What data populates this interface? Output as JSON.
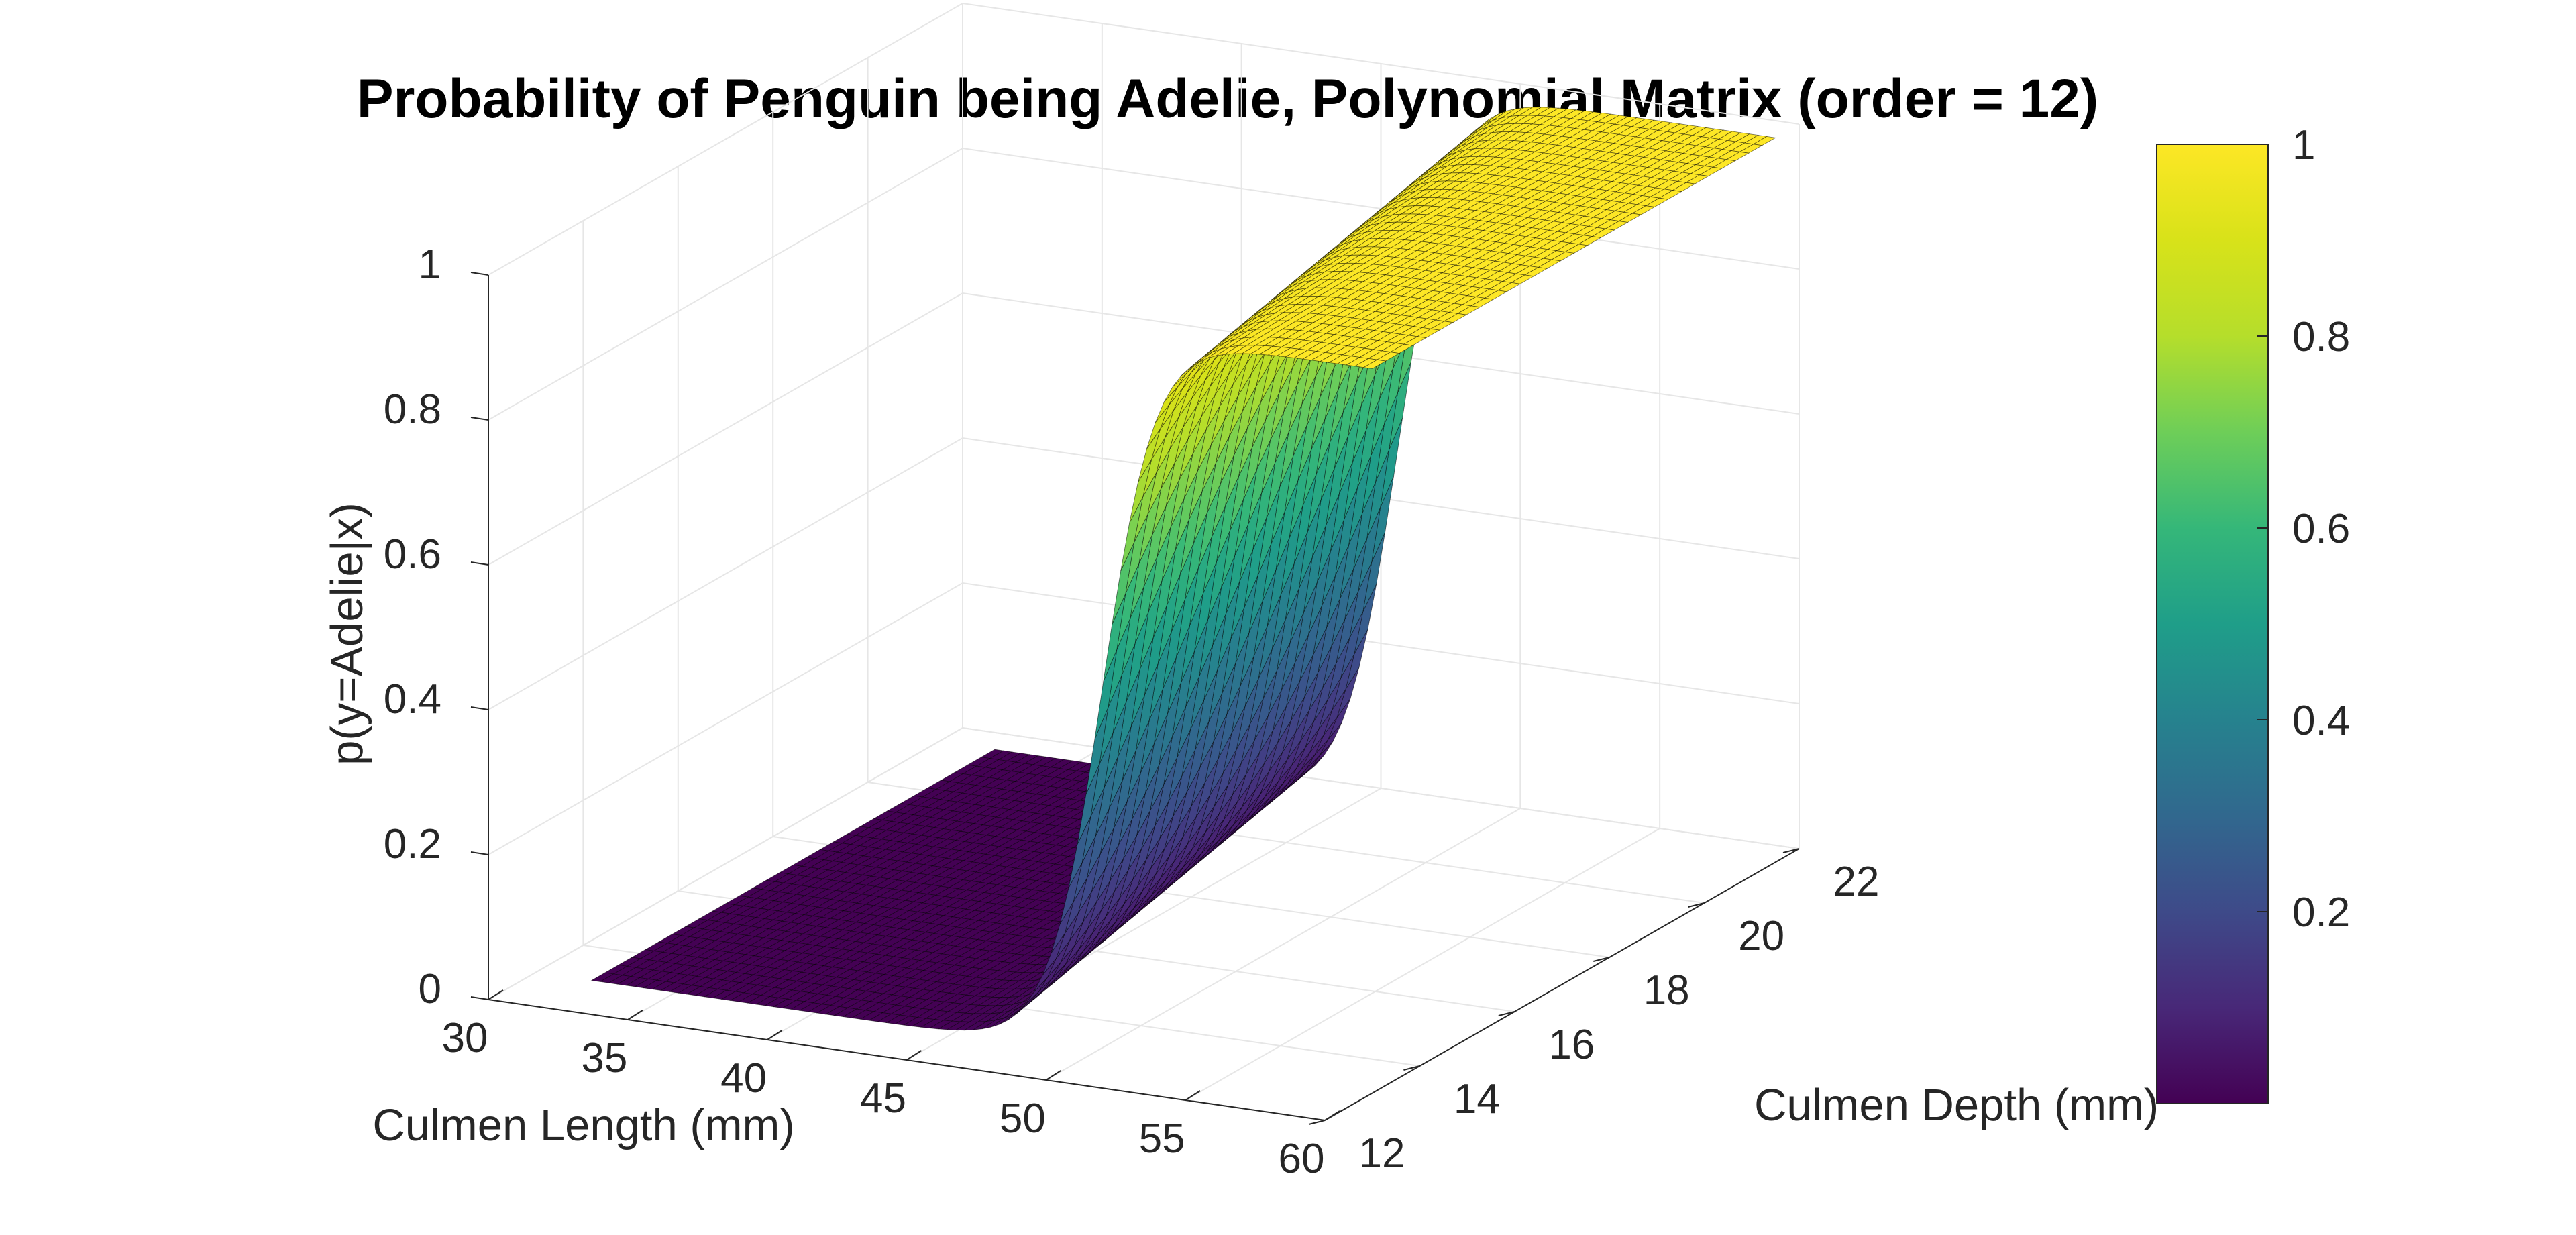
{
  "chart_data": {
    "type": "surface",
    "title": "Probability of Penguin being Adelie, Polynomial Matrix (order = 12)",
    "xlabel": "Culmen Length (mm)",
    "ylabel": "Culmen Depth (mm)",
    "zlabel": "p(y=Adelie|x)",
    "xlim": [
      30,
      60
    ],
    "ylim": [
      12,
      22
    ],
    "zlim": [
      0,
      1
    ],
    "x_ticks": [
      "30",
      "35",
      "40",
      "45",
      "50",
      "55",
      "60"
    ],
    "y_ticks": [
      "12",
      "14",
      "16",
      "18",
      "20",
      "22"
    ],
    "z_ticks": [
      "0",
      "0.2",
      "0.4",
      "0.6",
      "0.8",
      "1"
    ],
    "grid": true,
    "colormap": "viridis",
    "colorbar": {
      "range": [
        0,
        1
      ],
      "ticks": [
        "0.2",
        "0.4",
        "0.6",
        "0.8",
        "1"
      ]
    },
    "surface_description": "sigmoid transition along culmen length: p near 0 for small culmen length, rising to near 1 for larger culmen length; transition centered near culmen length ~45-50 mm, shifting slightly with culmen depth",
    "sample_values": {
      "culmen_length_mm": [
        32,
        40,
        44,
        46,
        48,
        50,
        55,
        60
      ],
      "p_at_depth_12": [
        0.0,
        0.0,
        0.02,
        0.15,
        0.6,
        0.93,
        1.0,
        1.0
      ],
      "p_at_depth_20": [
        0.0,
        0.0,
        0.04,
        0.3,
        0.78,
        0.97,
        1.0,
        1.0
      ]
    }
  }
}
